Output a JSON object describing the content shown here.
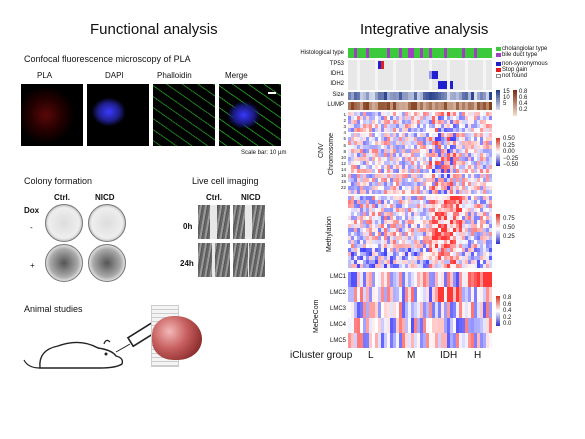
{
  "left": {
    "title": "Functional analysis",
    "pla_title": "Confocal fluorescence microscopy of PLA",
    "pla_panels": [
      "PLA",
      "DAPI",
      "Phalloidin",
      "Merge"
    ],
    "scale_bar": "Scale bar: 10 µm",
    "colony_title": "Colony formation",
    "colony_cols": [
      "Ctrl.",
      "NICD"
    ],
    "dox_label": "Dox",
    "dox_rows": [
      "-",
      "+"
    ],
    "live_title": "Live cell imaging",
    "live_cols": [
      "Ctrl.",
      "NICD"
    ],
    "live_rows": [
      "0h",
      "24h"
    ],
    "animal_title": "Animal studies"
  },
  "right": {
    "title": "Integrative analysis",
    "histo_label": "Histological type",
    "histo_legend": [
      "cholangiolar type",
      "bile duct type"
    ],
    "mut_labels": [
      "TP53",
      "IDH1",
      "IDH2"
    ],
    "mut_legend": [
      "non-synonymous",
      "Stop gain",
      "not found"
    ],
    "size_label": "Size",
    "size_ticks": [
      "15",
      "10",
      "5"
    ],
    "lump_label": "LUMP",
    "lump_ticks": [
      "0.8",
      "0.6",
      "0.4",
      "0.2"
    ],
    "cnv_label": "CNV",
    "chrom_label": "Chromosome",
    "chrom_ticks": [
      "1",
      "2",
      "3",
      "4",
      "5",
      "6",
      "8",
      "10",
      "12",
      "14",
      "16",
      "18",
      "22"
    ],
    "cnv_ticks": [
      "0.50",
      "0.25",
      "0.00",
      "−0.25",
      "−0.50"
    ],
    "meth_label": "Methylation",
    "meth_ticks": [
      "0.75",
      "0.50",
      "0.25"
    ],
    "medecom_label": "MeDeCom",
    "lmc_labels": [
      "LMC1",
      "LMC2",
      "LMC3",
      "LMC4",
      "LMC5"
    ],
    "lmc_ticks": [
      "0.8",
      "0.6",
      "0.4",
      "0.2",
      "0.0"
    ],
    "icluster_label": "iCluster group",
    "icluster_groups": [
      "L",
      "M",
      "IDH",
      "H"
    ]
  },
  "colors": {
    "cholangiolar": "#3cc93c",
    "bile_duct": "#a040c0",
    "nonsyn": "#2020d0",
    "stopgain": "#e02020"
  }
}
